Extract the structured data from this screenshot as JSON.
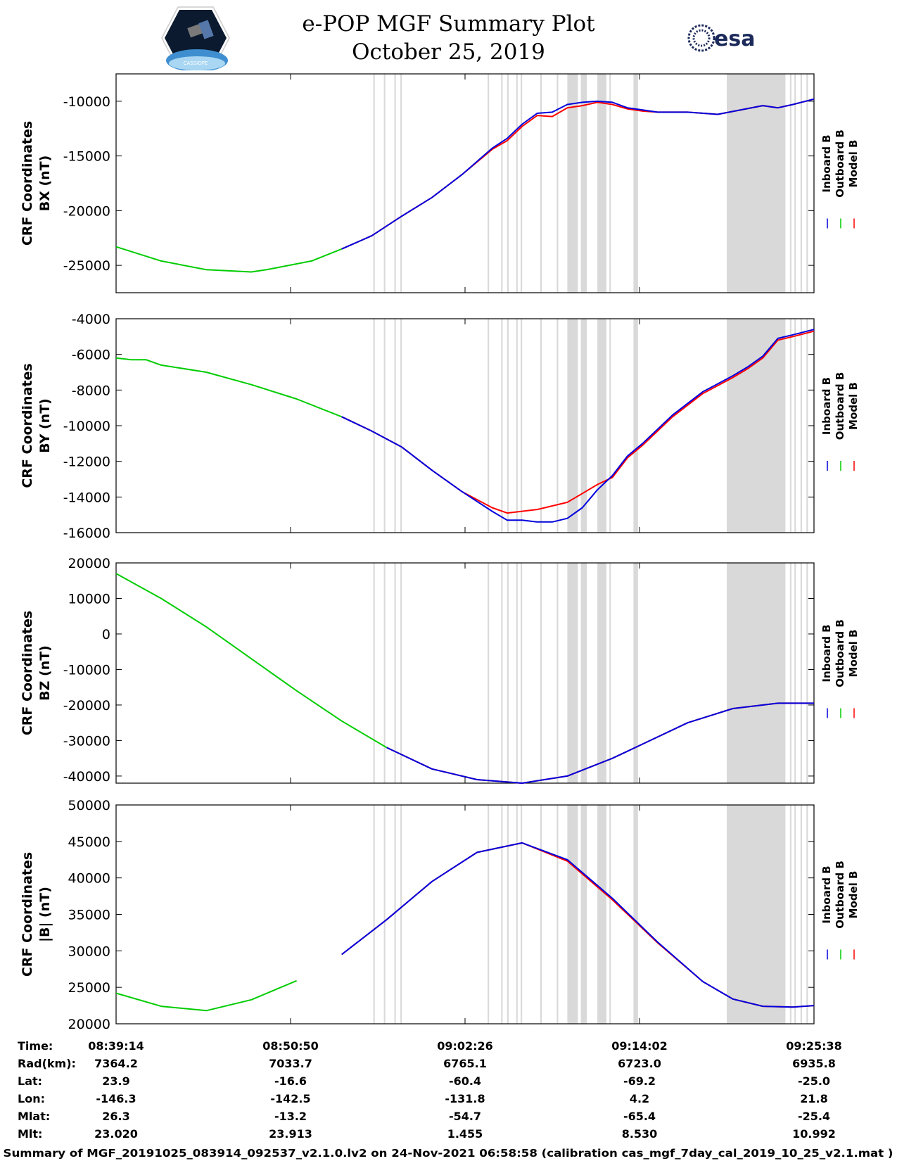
{
  "header": {
    "title_line1": "e-POP MGF Summary Plot",
    "title_line2": "October 25, 2019",
    "logo_left_text": "CASSIOPE",
    "logo_right_text": "esa"
  },
  "legend": [
    "Inboard B",
    "Outboard B",
    "Model B"
  ],
  "colors": {
    "inboard": "#0000dd",
    "outboard": "#00cc00",
    "model": "#ff0000",
    "gap": "#d9d9d9"
  },
  "chart_data": [
    {
      "type": "line",
      "ylabel1": "CRF Coordinates",
      "ylabel2": "BX (nT)",
      "ylim": [
        -27500,
        -7500
      ],
      "yticks": [
        "-10000",
        "-15000",
        "-20000",
        "-25000"
      ],
      "x_minutes": [
        0,
        3,
        6,
        9,
        10,
        13,
        15,
        17,
        19,
        21,
        23,
        25,
        26,
        27,
        28,
        29,
        30,
        31,
        32,
        33,
        34,
        35,
        36,
        38,
        40,
        43,
        44,
        45,
        46.4
      ],
      "series": [
        {
          "name": "Outboard B",
          "x_end": 15,
          "values": [
            -23300,
            -24600,
            -25400,
            -25600,
            -25400,
            -24600,
            -23500,
            -22300,
            -20500,
            -18800,
            -16700,
            -14300,
            -13400,
            -12100,
            -11100,
            -11000,
            -10300,
            -10100,
            -10000,
            -10100,
            -10600,
            -10800,
            -11000,
            -11000,
            -11200,
            -10400,
            -10600,
            -10300,
            -9800
          ]
        },
        {
          "name": "Model B",
          "x_start": 15,
          "values": [
            -23300,
            -24600,
            -25400,
            -25600,
            -25400,
            -24600,
            -23500,
            -22300,
            -20500,
            -18800,
            -16700,
            -14400,
            -13600,
            -12300,
            -11300,
            -11400,
            -10600,
            -10400,
            -10100,
            -10300,
            -10700,
            -10900,
            -11000,
            -11000,
            -11200,
            -10400,
            -10600,
            -10300,
            -9800
          ]
        },
        {
          "name": "Inboard B",
          "x_start": 15,
          "values": [
            -23300,
            -24600,
            -25400,
            -25600,
            -25400,
            -24600,
            -23500,
            -22300,
            -20500,
            -18800,
            -16700,
            -14300,
            -13400,
            -12100,
            -11100,
            -11000,
            -10300,
            -10100,
            -10000,
            -10100,
            -10600,
            -10800,
            -11000,
            -11000,
            -11200,
            -10400,
            -10600,
            -10300,
            -9800
          ]
        }
      ]
    },
    {
      "type": "line",
      "ylabel1": "CRF Coordinates",
      "ylabel2": "BY (nT)",
      "ylim": [
        -16000,
        -4000
      ],
      "yticks": [
        "-4000",
        "-6000",
        "-8000",
        "-10000",
        "-12000",
        "-14000",
        "-16000"
      ],
      "x_minutes": [
        0,
        1,
        2,
        3,
        6,
        9,
        12,
        15,
        17,
        19,
        21,
        23,
        25,
        26,
        27,
        28,
        29,
        30,
        31,
        32,
        33,
        34,
        35,
        37,
        39,
        41,
        42,
        43,
        44,
        45,
        46.4
      ],
      "series": [
        {
          "name": "Outboard B",
          "x_end": 15,
          "values": [
            -6200,
            -6300,
            -6300,
            -6600,
            -7000,
            -7700,
            -8500,
            -9500,
            -10300,
            -11200,
            -12500,
            -13700,
            -14800,
            -15300,
            -15300,
            -15400,
            -15400,
            -15200,
            -14600,
            -13600,
            -12800,
            -11700,
            -11000,
            -9400,
            -8100,
            -7200,
            -6700,
            -6100,
            -5100,
            -4900,
            -4600
          ]
        },
        {
          "name": "Model B",
          "x_start": 15,
          "values": [
            -6200,
            -6300,
            -6300,
            -6600,
            -7000,
            -7700,
            -8500,
            -9500,
            -10300,
            -11200,
            -12500,
            -13700,
            -14600,
            -14900,
            -14800,
            -14700,
            -14500,
            -14300,
            -13800,
            -13300,
            -12900,
            -11800,
            -11100,
            -9500,
            -8200,
            -7300,
            -6800,
            -6200,
            -5200,
            -5000,
            -4700
          ]
        },
        {
          "name": "Inboard B",
          "x_start": 15,
          "values": [
            -6200,
            -6300,
            -6300,
            -6600,
            -7000,
            -7700,
            -8500,
            -9500,
            -10300,
            -11200,
            -12500,
            -13700,
            -14800,
            -15300,
            -15300,
            -15400,
            -15400,
            -15200,
            -14600,
            -13600,
            -12800,
            -11700,
            -11000,
            -9400,
            -8100,
            -7200,
            -6700,
            -6100,
            -5100,
            -4900,
            -4600
          ]
        }
      ]
    },
    {
      "type": "line",
      "ylabel1": "CRF Coordinates",
      "ylabel2": "BZ (nT)",
      "ylim": [
        -42000,
        20000
      ],
      "yticks": [
        "20000",
        "10000",
        "0",
        "-10000",
        "-20000",
        "-30000",
        "-40000"
      ],
      "x_minutes": [
        0,
        3,
        6,
        9,
        12,
        15,
        18,
        21,
        24,
        27,
        30,
        33,
        35,
        38,
        41,
        44,
        46.4
      ],
      "series": [
        {
          "name": "Outboard B",
          "x_end": 18,
          "values": [
            17000,
            10000,
            2000,
            -7000,
            -16000,
            -24500,
            -32000,
            -38000,
            -41000,
            -42000,
            -40000,
            -35000,
            -31000,
            -25000,
            -21000,
            -19500,
            -19500
          ]
        },
        {
          "name": "Model B",
          "x_start": 18,
          "values": [
            17000,
            10000,
            2000,
            -7000,
            -16000,
            -24500,
            -32000,
            -38000,
            -41000,
            -42000,
            -40000,
            -35000,
            -31000,
            -25000,
            -21000,
            -19500,
            -19500
          ]
        },
        {
          "name": "Inboard B",
          "x_start": 18,
          "values": [
            17000,
            10000,
            2000,
            -7000,
            -16000,
            -24500,
            -32000,
            -38000,
            -41000,
            -42000,
            -40000,
            -35000,
            -31000,
            -25000,
            -21000,
            -19500,
            -19500
          ]
        }
      ]
    },
    {
      "type": "line",
      "ylabel1": "CRF Coordinates",
      "ylabel2": "|B| (nT)",
      "ylim": [
        20000,
        50000
      ],
      "yticks": [
        "50000",
        "45000",
        "40000",
        "35000",
        "30000",
        "25000",
        "20000"
      ],
      "x_minutes": [
        0,
        3,
        6,
        9,
        12,
        15,
        18,
        21,
        24,
        27,
        30,
        33,
        36,
        39,
        41,
        43,
        45,
        46.4
      ],
      "series": [
        {
          "name": "Outboard B",
          "x_end": 14,
          "values": [
            24200,
            22400,
            21800,
            23300,
            25900,
            29500,
            34300,
            39500,
            43500,
            44800,
            42500,
            37200,
            31200,
            25800,
            23400,
            22400,
            22300,
            22500
          ]
        },
        {
          "name": "Model B",
          "x_start": 14,
          "values": [
            24200,
            22400,
            21800,
            23300,
            25900,
            29500,
            34300,
            39500,
            43500,
            44800,
            42300,
            37000,
            31100,
            25800,
            23400,
            22400,
            22300,
            22500
          ]
        },
        {
          "name": "Inboard B",
          "x_start": 14,
          "values": [
            24200,
            22400,
            21800,
            23300,
            25900,
            29500,
            34300,
            39500,
            43500,
            44800,
            42500,
            37200,
            31200,
            25800,
            23400,
            22400,
            22300,
            22500
          ]
        }
      ]
    }
  ],
  "gaps_minutes": [
    [
      17.1,
      17.2
    ],
    [
      17.8,
      17.9
    ],
    [
      18.5,
      18.6
    ],
    [
      18.9,
      19.0
    ],
    [
      24.7,
      24.8
    ],
    [
      25.6,
      25.7
    ],
    [
      26.0,
      26.1
    ],
    [
      26.6,
      26.7
    ],
    [
      26.9,
      27.0
    ],
    [
      28.2,
      28.3
    ],
    [
      29.3,
      29.4
    ],
    [
      30.0,
      30.7
    ],
    [
      30.9,
      31.3
    ],
    [
      32.0,
      32.6
    ],
    [
      32.8,
      32.9
    ],
    [
      34.4,
      34.7
    ],
    [
      40.6,
      44.5
    ],
    [
      44.8,
      44.9
    ],
    [
      45.1,
      45.2
    ],
    [
      45.5,
      45.6
    ],
    [
      45.9,
      46.0
    ]
  ],
  "table": {
    "labels": [
      "Time:",
      "Rad(km):",
      "Lat:",
      "Lon:",
      "Mlat:",
      "Mlt:"
    ],
    "columns": [
      [
        "08:39:14",
        "7364.2",
        "23.9",
        "-146.3",
        "26.3",
        "23.020"
      ],
      [
        "08:50:50",
        "7033.7",
        "-16.6",
        "-142.5",
        "-13.2",
        "23.913"
      ],
      [
        "09:02:26",
        "6765.1",
        "-60.4",
        "-131.8",
        "-54.7",
        "1.455"
      ],
      [
        "09:14:02",
        "6723.0",
        "-69.2",
        "4.2",
        "-65.4",
        "8.530"
      ],
      [
        "09:25:38",
        "6935.8",
        "-25.0",
        "21.8",
        "-25.4",
        "10.992"
      ]
    ]
  },
  "footer": "Summary of MGF_20191025_083914_092537_v2.1.0.lv2 on 24-Nov-2021 06:58:58 (calibration cas_mgf_7day_cal_2019_10_25_v2.1.mat )"
}
